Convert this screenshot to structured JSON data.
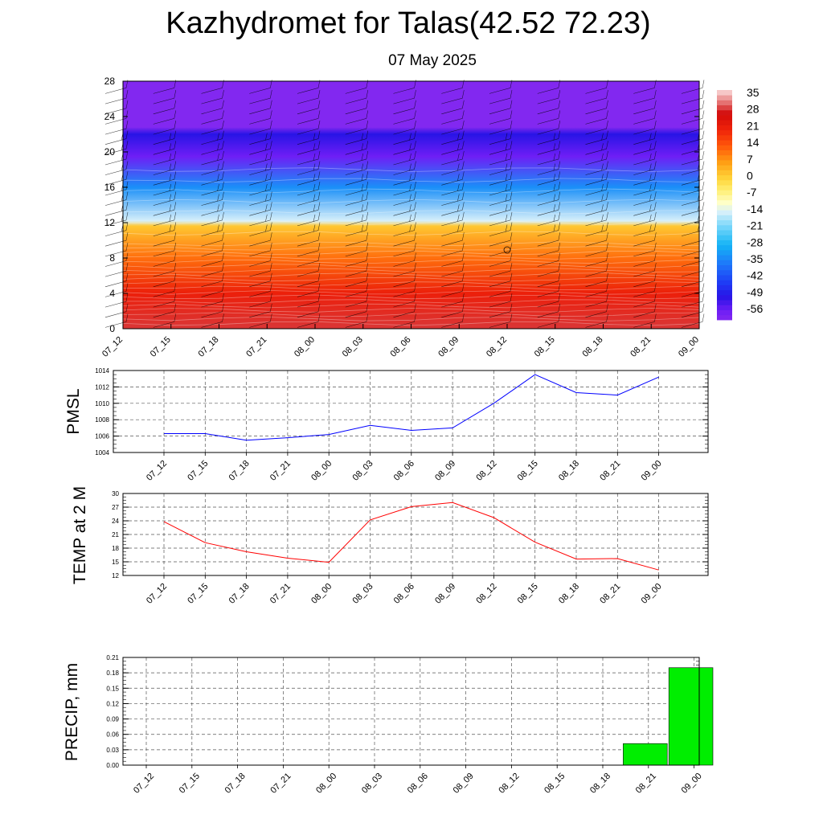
{
  "title": "Kazhydromet for Talas(42.52 72.23)",
  "subtitle": "07 May 2025",
  "time_labels": [
    "07_12",
    "07_15",
    "07_18",
    "07_21",
    "08_00",
    "08_03",
    "08_06",
    "08_09",
    "08_12",
    "08_15",
    "08_18",
    "08_21",
    "09_00"
  ],
  "chart_data": [
    {
      "type": "heatmap",
      "name": "vertical-temperature-cross-section",
      "x_categories": [
        "07_12",
        "07_15",
        "07_18",
        "07_21",
        "08_00",
        "08_03",
        "08_06",
        "08_09",
        "08_12",
        "08_15",
        "08_18",
        "08_21",
        "09_00"
      ],
      "y_ticks": [
        0,
        4,
        8,
        12,
        16,
        20,
        24,
        28
      ],
      "ylim": [
        0,
        28
      ],
      "colorbar_ticks": [
        35,
        28,
        21,
        14,
        7,
        0,
        -7,
        -14,
        -21,
        -28,
        -35,
        -42,
        -49,
        -56
      ],
      "colorbar_range": [
        -60,
        38
      ],
      "temperature_profile": [
        {
          "y": 0,
          "t": 30
        },
        {
          "y": 4,
          "t": 22
        },
        {
          "y": 8,
          "t": 12
        },
        {
          "y": 11.6,
          "t": 2
        },
        {
          "y": 12.2,
          "t": -14
        },
        {
          "y": 16,
          "t": -33
        },
        {
          "y": 19.5,
          "t": -56
        },
        {
          "y": 22,
          "t": -50
        },
        {
          "y": 22.8,
          "t": -60
        },
        {
          "y": 28,
          "t": -60
        }
      ],
      "wind_barbs": true
    },
    {
      "type": "line",
      "ylabel": "PMSL",
      "categories": [
        "07_12",
        "07_15",
        "07_18",
        "07_21",
        "08_00",
        "08_03",
        "08_06",
        "08_09",
        "08_12",
        "08_15",
        "08_18",
        "08_21",
        "09_00"
      ],
      "values": [
        1006.3,
        1006.3,
        1005.5,
        1005.8,
        1006.2,
        1007.3,
        1006.7,
        1007.0,
        1010.0,
        1013.5,
        1011.3,
        1011.0,
        1013.2
      ],
      "ylim": [
        1004,
        1014
      ],
      "y_ticks": [
        1004,
        1006,
        1008,
        1010,
        1012,
        1014
      ],
      "color": "#0000ff",
      "grid": true
    },
    {
      "type": "line",
      "ylabel": "TEMP at 2 M",
      "categories": [
        "07_12",
        "07_15",
        "07_18",
        "07_21",
        "08_00",
        "08_03",
        "08_06",
        "08_09",
        "08_12",
        "08_15",
        "08_18",
        "08_21",
        "09_00"
      ],
      "values": [
        23.8,
        19.2,
        17.2,
        15.8,
        14.9,
        24.2,
        27.1,
        28.0,
        24.7,
        19.3,
        15.6,
        15.7,
        13.2
      ],
      "ylim": [
        12,
        30
      ],
      "y_ticks": [
        12,
        15,
        18,
        21,
        24,
        27,
        30
      ],
      "color": "#ff0000",
      "grid": true
    },
    {
      "type": "bar",
      "ylabel": "PRECIP, mm",
      "categories": [
        "07_12",
        "07_15",
        "07_18",
        "07_21",
        "08_00",
        "08_03",
        "08_06",
        "08_09",
        "08_12",
        "08_15",
        "08_18",
        "08_21",
        "09_00"
      ],
      "values": [
        0,
        0,
        0,
        0,
        0,
        0,
        0,
        0,
        0,
        0,
        0,
        0.042,
        0.19
      ],
      "ylim": [
        0,
        0.21
      ],
      "y_ticks": [
        "0.00",
        "0.03",
        "0.06",
        "0.09",
        "0.12",
        "0.15",
        "0.18",
        "0.21"
      ],
      "color": "#00ee00",
      "grid": true
    }
  ]
}
